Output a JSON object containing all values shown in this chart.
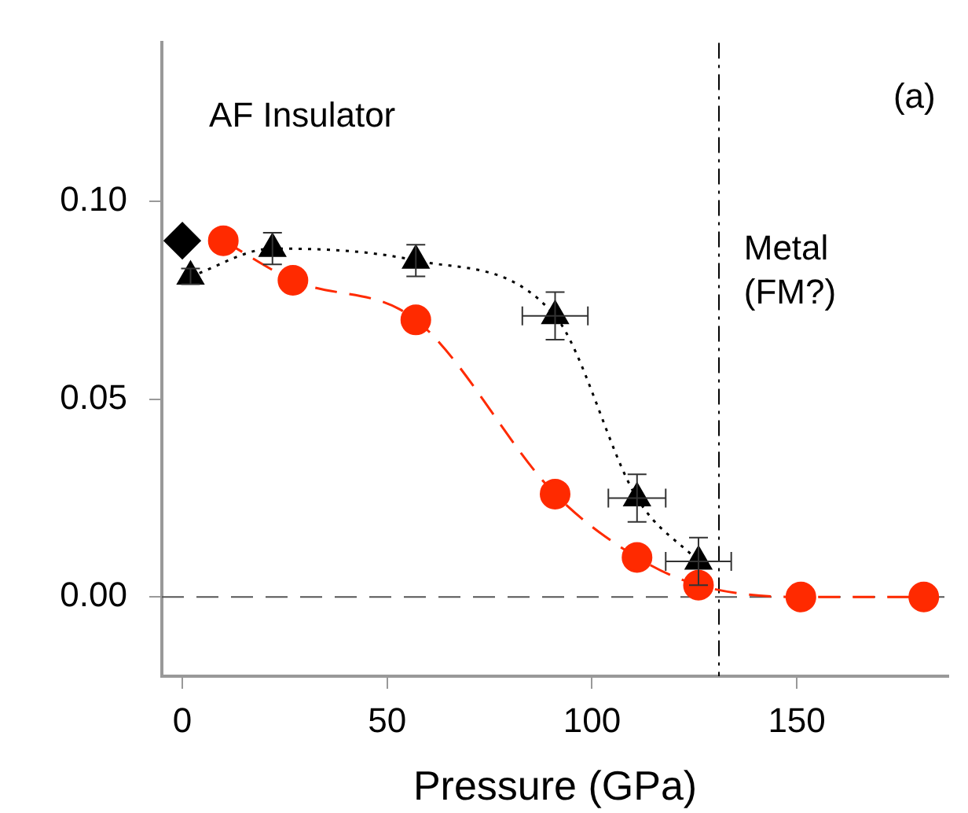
{
  "chart_data": {
    "type": "scatter",
    "xlabel": "Pressure (GPa)",
    "xlim": [
      -5,
      187
    ],
    "xticks": [
      0,
      50,
      100,
      150
    ],
    "ylim": [
      -0.02,
      0.14
    ],
    "yticks": [
      {
        "value": 0,
        "label": "0.00"
      },
      {
        "value": 0.05,
        "label": "0.05"
      },
      {
        "value": 0.1,
        "label": "0.10"
      }
    ],
    "grid": false,
    "legend": false,
    "series": [
      {
        "type": "line",
        "color": "#ff2a00",
        "marker": "circle",
        "line_style": "dashed",
        "x": [
          10,
          27,
          57,
          91,
          111,
          126,
          151,
          181
        ],
        "values": [
          0.09,
          0.08,
          0.07,
          0.026,
          0.01,
          0.003,
          0.0,
          0.0
        ]
      },
      {
        "type": "line",
        "color": "#000000",
        "marker": "triangle",
        "line_style": "dotted",
        "x": [
          2,
          22,
          57,
          91,
          111,
          126
        ],
        "values": [
          0.081,
          0.088,
          0.085,
          0.071,
          0.025,
          0.009
        ],
        "errors": [
          0.002,
          0.004,
          0.004,
          0.006,
          0.006,
          0.006
        ],
        "xerrors": [
          null,
          null,
          null,
          8,
          7,
          8
        ]
      },
      {
        "type": "scatter",
        "color": "#000000",
        "marker": "diamond",
        "x": [
          0
        ],
        "values": [
          0.09
        ]
      }
    ],
    "ref_lines": [
      {
        "axis": "y",
        "value": 0,
        "color": "#555555",
        "line_style": "dashed"
      },
      {
        "axis": "x",
        "value": 131,
        "color": "#000000",
        "line_style": "dashed"
      }
    ],
    "annotations": [
      "AF Insulator",
      "Metal\n(FM?)",
      "(a)"
    ]
  }
}
